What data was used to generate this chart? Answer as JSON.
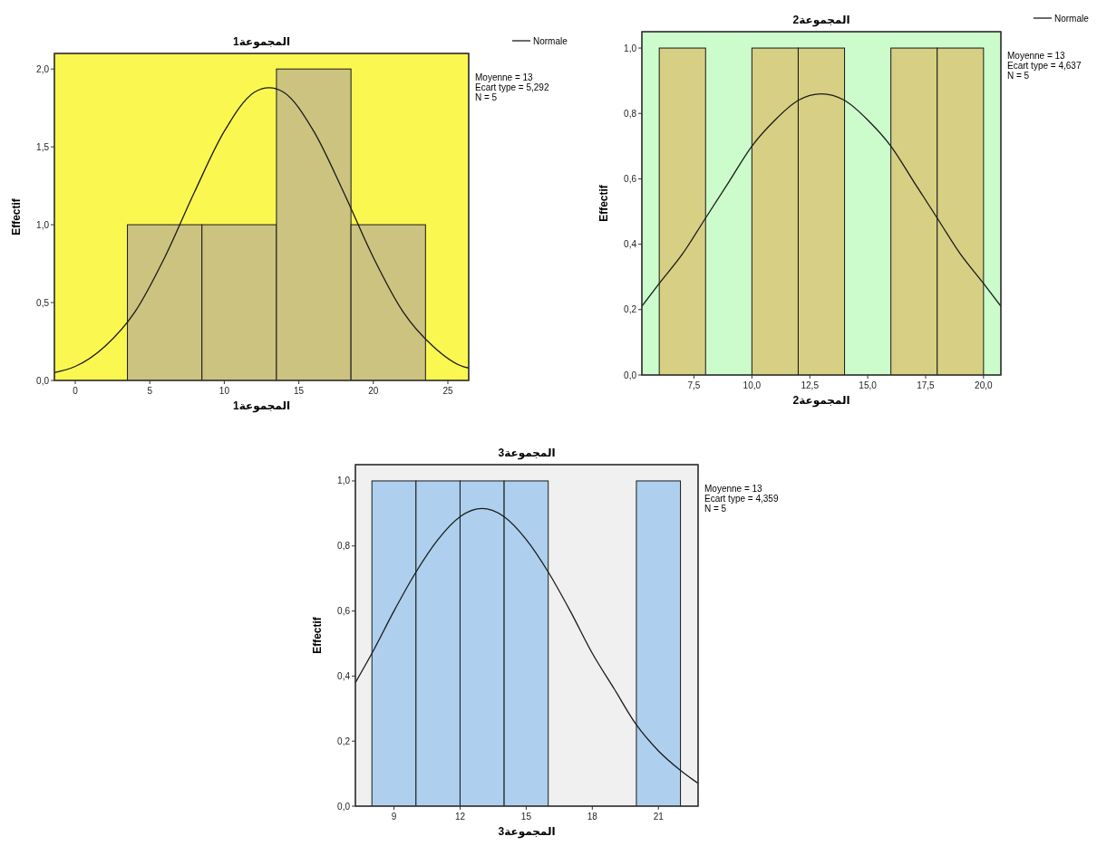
{
  "chart_data": [
    {
      "type": "histogram",
      "title": "المجموعة1",
      "xlabel": "المجموعة1",
      "ylabel": "Effectif",
      "bins": [
        3.5,
        8.5,
        13.5,
        18.5,
        23.5
      ],
      "values": [
        1,
        1,
        2,
        1
      ],
      "color": "#ccc381",
      "series": [
        {
          "type": "line",
          "name": "Normale",
          "color": "#1a1a1a",
          "x": [
            -1.4,
            0,
            2,
            4,
            6,
            8,
            10,
            12,
            13,
            14,
            16,
            18,
            20,
            22,
            24,
            26,
            26.4
          ],
          "values": [
            0.05,
            0.09,
            0.22,
            0.44,
            0.79,
            1.21,
            1.6,
            1.85,
            1.88,
            1.85,
            1.6,
            1.21,
            0.79,
            0.44,
            0.22,
            0.09,
            0.08
          ]
        }
      ],
      "xlim": [
        -1.4,
        26.4
      ],
      "xticks": [
        0,
        5,
        10,
        15,
        20,
        25
      ],
      "ylim": [
        0,
        2.1
      ],
      "yticks": [
        {
          "value": 0,
          "label": "0,0"
        },
        {
          "value": 0.5,
          "label": "0,5"
        },
        {
          "value": 1,
          "label": "1,0"
        },
        {
          "value": 1.5,
          "label": "1,5"
        },
        {
          "value": 2,
          "label": "2,0"
        }
      ],
      "legend": "top right",
      "annotations": [
        "Moyenne = 13",
        "Ecart type = 5,292",
        "N = 5"
      ]
    },
    {
      "type": "histogram",
      "title": "المجموعة2",
      "xlabel": "المجموعة2",
      "ylabel": "Effectif",
      "bins": [
        6,
        8,
        10,
        12,
        14,
        16,
        18,
        20
      ],
      "values": [
        1,
        0,
        1,
        1,
        0,
        1,
        1
      ],
      "color": "#d7cf83",
      "series": [
        {
          "type": "line",
          "name": "Normale",
          "color": "#1a1a1a",
          "x": [
            5.25,
            6,
            7,
            8,
            9,
            10,
            11,
            12,
            13,
            14,
            15,
            16,
            17,
            18,
            19,
            20,
            20.75
          ],
          "values": [
            0.21,
            0.28,
            0.37,
            0.48,
            0.59,
            0.7,
            0.78,
            0.84,
            0.86,
            0.84,
            0.78,
            0.7,
            0.59,
            0.48,
            0.37,
            0.28,
            0.21
          ]
        }
      ],
      "xlim": [
        5.25,
        20.75
      ],
      "xticks": [
        {
          "value": 7.5,
          "label": "7,5"
        },
        {
          "value": 10,
          "label": "10,0"
        },
        {
          "value": 12.5,
          "label": "12,5"
        },
        {
          "value": 15,
          "label": "15,0"
        },
        {
          "value": 17.5,
          "label": "17,5"
        },
        {
          "value": 20,
          "label": "20,0"
        }
      ],
      "ylim": [
        0,
        1.05
      ],
      "yticks": [
        {
          "value": 0,
          "label": "0,0"
        },
        {
          "value": 0.2,
          "label": "0,2"
        },
        {
          "value": 0.4,
          "label": "0,4"
        },
        {
          "value": 0.6,
          "label": "0,6"
        },
        {
          "value": 0.8,
          "label": "0,8"
        },
        {
          "value": 1,
          "label": "1,0"
        }
      ],
      "legend": "top right",
      "annotations": [
        "Moyenne = 13",
        "Ecart type = 4,637",
        "N = 5"
      ]
    },
    {
      "type": "histogram",
      "title": "المجموعة3",
      "xlabel": "المجموعة3",
      "ylabel": "Effectif",
      "bins": [
        8,
        10,
        12,
        14,
        16,
        18,
        20,
        22
      ],
      "values": [
        1,
        1,
        1,
        1,
        0,
        0,
        1
      ],
      "color": "#aed0ee",
      "series": [
        {
          "type": "line",
          "color": "#1a1a1a",
          "x": [
            7.25,
            8,
            9,
            10,
            11,
            12,
            13,
            14,
            15,
            16,
            17,
            18,
            19,
            20,
            21,
            22,
            22.8
          ],
          "values": [
            0.38,
            0.47,
            0.6,
            0.72,
            0.82,
            0.89,
            0.915,
            0.89,
            0.82,
            0.72,
            0.6,
            0.47,
            0.36,
            0.25,
            0.17,
            0.11,
            0.07
          ]
        }
      ],
      "xlim": [
        7.25,
        22.8
      ],
      "xticks": [
        9,
        12,
        15,
        18,
        21
      ],
      "ylim": [
        0,
        1.05
      ],
      "yticks": [
        {
          "value": 0,
          "label": "0,0"
        },
        {
          "value": 0.2,
          "label": "0,2"
        },
        {
          "value": 0.4,
          "label": "0,4"
        },
        {
          "value": 0.6,
          "label": "0,6"
        },
        {
          "value": 0.8,
          "label": "0,8"
        },
        {
          "value": 1,
          "label": "1,0"
        }
      ],
      "annotations": [
        "Moyenne = 13",
        "Ecart type = 4,359",
        "N = 5"
      ]
    }
  ]
}
